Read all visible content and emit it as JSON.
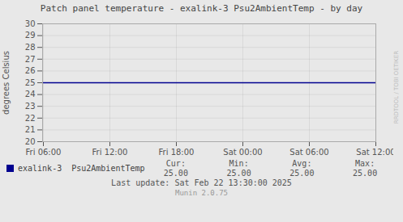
{
  "chart_data": {
    "type": "line",
    "title": "Patch panel temperature - exalink-3 Psu2AmbientTemp - by day",
    "ylabel": "degrees Celsius",
    "categories": [
      "Fri 06:00",
      "Fri 12:00",
      "Fri 18:00",
      "Sat 00:00",
      "Sat 06:00",
      "Sat 12:00"
    ],
    "series": [
      {
        "name": "exalink-3  Psu2AmbientTemp",
        "color": "#00008f",
        "values": [
          25.0,
          25.0,
          25.0,
          25.0,
          25.0,
          25.0
        ]
      }
    ],
    "ylim": [
      20,
      30
    ],
    "yticks": [
      20,
      21,
      22,
      23,
      24,
      25,
      26,
      27,
      28,
      29,
      30
    ],
    "grid": true,
    "legend": "bottom",
    "annotations": [
      [
        "Cur:",
        "Min:",
        "Avg:",
        "Max:"
      ],
      [
        "25.00",
        "25.00",
        "25.00",
        "25.00"
      ],
      [
        "Last update: Sat Feb 22 13:30:00 2025"
      ],
      [
        "Munin 2.0.75"
      ],
      [
        "RRDTOOL / TOBI OETIKER"
      ]
    ]
  }
}
